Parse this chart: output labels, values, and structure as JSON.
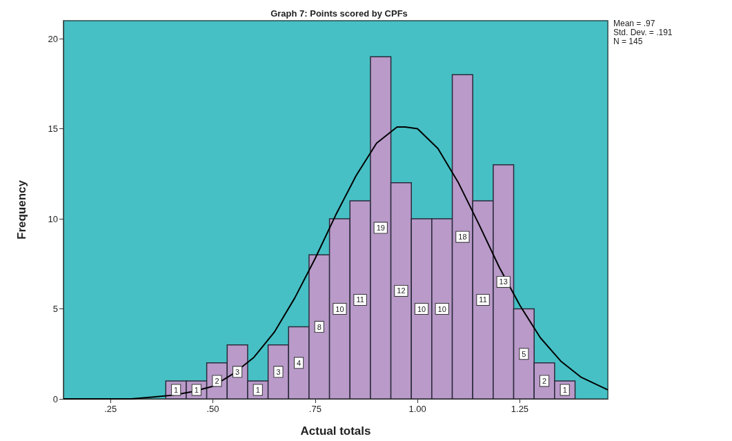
{
  "chart_data": {
    "type": "histogram",
    "title": "Graph 7: Points scored by CPFs",
    "xlabel": "Actual totals",
    "ylabel": "Frequency",
    "annotations": [
      "Mean = .97",
      "Std. Dev. = .191",
      "N = 145"
    ],
    "bins": [
      0.385,
      0.435,
      0.485,
      0.535,
      0.585,
      0.635,
      0.685,
      0.735,
      0.785,
      0.835,
      0.885,
      0.935,
      0.985,
      1.035,
      1.085,
      1.135,
      1.185,
      1.235,
      1.285,
      1.335,
      1.385
    ],
    "series": [
      {
        "color": "#b99ac9",
        "values": [
          1,
          1,
          2,
          3,
          1,
          3,
          4,
          8,
          10,
          11,
          19,
          12,
          10,
          10,
          18,
          11,
          13,
          5,
          2,
          1
        ],
        "value_labels": [
          "1",
          "1",
          "2",
          "3",
          "1",
          "3",
          "4",
          "8",
          "10",
          "11",
          "19",
          "12",
          "10",
          "10",
          "18",
          "11",
          "13",
          "5",
          "2",
          "1"
        ]
      },
      {
        "type": "line",
        "color": "#000000",
        "x": [
          0.135,
          0.2,
          0.25,
          0.3,
          0.35,
          0.4,
          0.45,
          0.5,
          0.55,
          0.6,
          0.65,
          0.7,
          0.75,
          0.8,
          0.85,
          0.9,
          0.95,
          0.97,
          1.0,
          1.05,
          1.1,
          1.15,
          1.2,
          1.25,
          1.3,
          1.35,
          1.4,
          1.465
        ],
        "values": [
          0.0,
          0.0,
          0.0,
          0.0,
          0.1,
          0.2,
          0.4,
          0.7,
          1.4,
          2.3,
          3.7,
          5.6,
          7.8,
          10.2,
          12.4,
          14.2,
          15.1,
          15.1,
          15.0,
          13.9,
          12.0,
          9.7,
          7.3,
          5.2,
          3.4,
          2.1,
          1.2,
          0.5
        ]
      }
    ],
    "xlim": [
      0.135,
      1.465
    ],
    "xticks": [
      {
        "value": 0.25,
        "label": ".25"
      },
      {
        "value": 0.5,
        "label": ".50"
      },
      {
        "value": 0.75,
        "label": ".75"
      },
      {
        "value": 1.0,
        "label": "1.00"
      },
      {
        "value": 1.25,
        "label": "1.25"
      }
    ],
    "ylim": [
      0,
      21
    ],
    "yticks": [
      0,
      5,
      10,
      15,
      20
    ],
    "grid": false,
    "marker": "none"
  }
}
